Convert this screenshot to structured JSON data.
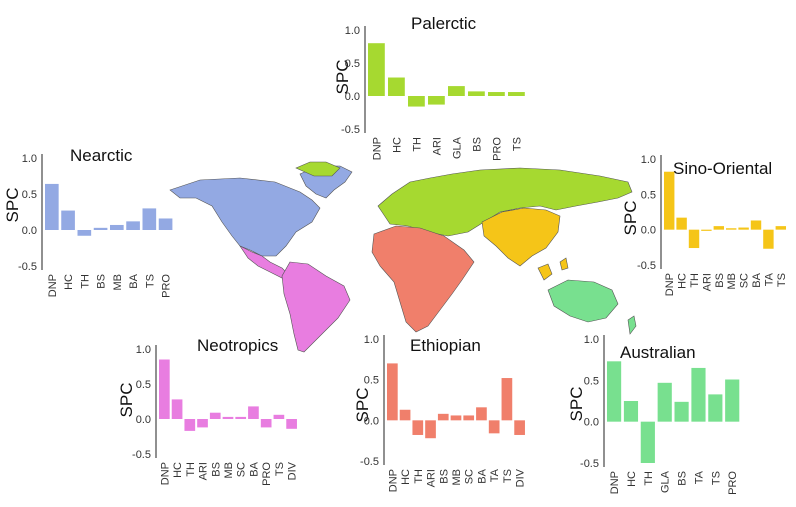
{
  "chart_data": [
    {
      "type": "bar",
      "title": "Palerctic",
      "ylabel": "SPC",
      "color": "#a6d930",
      "ylim": [
        -0.5,
        1.0
      ],
      "yticks": [
        "1.0",
        "0.5",
        "0.0",
        "-0.5"
      ],
      "categories": [
        "DNP",
        "HC",
        "TH",
        "ARI",
        "GLA",
        "BS",
        "PRO",
        "TS"
      ],
      "values": [
        0.8,
        0.28,
        -0.16,
        -0.13,
        0.15,
        0.07,
        0.06,
        0.06
      ]
    },
    {
      "type": "bar",
      "title": "Nearctic",
      "ylabel": "SPC",
      "color": "#93a9e3",
      "ylim": [
        -0.5,
        1.0
      ],
      "yticks": [
        "1.0",
        "0.5",
        "0.0",
        "-0.5"
      ],
      "categories": [
        "DNP",
        "HC",
        "TH",
        "BS",
        "MB",
        "BA",
        "TS",
        "PRO"
      ],
      "values": [
        0.64,
        0.27,
        -0.08,
        0.03,
        0.07,
        0.12,
        0.3,
        0.16
      ]
    },
    {
      "type": "bar",
      "title": "Sino-Oriental",
      "ylabel": "SPC",
      "color": "#f5c518",
      "ylim": [
        -0.5,
        1.0
      ],
      "yticks": [
        "1.0",
        "0.5",
        "0.0",
        "-0.5"
      ],
      "categories": [
        "DNP",
        "HC",
        "TH",
        "ARI",
        "BS",
        "MB",
        "SC",
        "BA",
        "TA",
        "TS"
      ],
      "values": [
        0.82,
        0.17,
        -0.26,
        -0.01,
        0.05,
        0.02,
        0.03,
        0.13,
        -0.27,
        0.05
      ]
    },
    {
      "type": "bar",
      "title": "Neotropics",
      "ylabel": "SPC",
      "color": "#e87de0",
      "ylim": [
        -0.5,
        1.0
      ],
      "yticks": [
        "1.0",
        "0.5",
        "0.0",
        "-0.5"
      ],
      "categories": [
        "DNP",
        "HC",
        "TH",
        "ARI",
        "BS",
        "MB",
        "SC",
        "BA",
        "PRO",
        "TS",
        "DIV"
      ],
      "values": [
        0.85,
        0.28,
        -0.17,
        -0.12,
        0.09,
        0.03,
        0.03,
        0.18,
        -0.12,
        0.06,
        -0.14
      ]
    },
    {
      "type": "bar",
      "title": "Ethiopian",
      "ylabel": "SPC",
      "color": "#f07f6b",
      "ylim": [
        -0.5,
        1.0
      ],
      "yticks": [
        "1.0",
        "0.5",
        "0.0",
        "-0.5"
      ],
      "categories": [
        "DNP",
        "HC",
        "TH",
        "ARI",
        "BS",
        "MB",
        "SC",
        "BA",
        "TA",
        "TS",
        "DIV"
      ],
      "values": [
        0.7,
        0.13,
        -0.18,
        -0.22,
        0.08,
        0.06,
        0.06,
        0.16,
        -0.16,
        0.52,
        -0.18
      ]
    },
    {
      "type": "bar",
      "title": "Australian",
      "ylabel": "SPC",
      "color": "#78e08f",
      "ylim": [
        -0.5,
        1.0
      ],
      "yticks": [
        "1.0",
        "0.5",
        "0.0",
        "-0.5"
      ],
      "categories": [
        "DNP",
        "HC",
        "TH",
        "GLA",
        "BS",
        "TA",
        "TS",
        "PRO"
      ],
      "values": [
        0.73,
        0.25,
        -0.5,
        0.47,
        0.24,
        0.65,
        0.33,
        0.51
      ]
    }
  ],
  "map": {
    "colors": {
      "nearctic": "#93a9e3",
      "palearctic": "#a6d930",
      "neotropics": "#e87de0",
      "ethiopian": "#f07f6b",
      "sino_oriental": "#f5c518",
      "australian": "#78e08f"
    }
  }
}
